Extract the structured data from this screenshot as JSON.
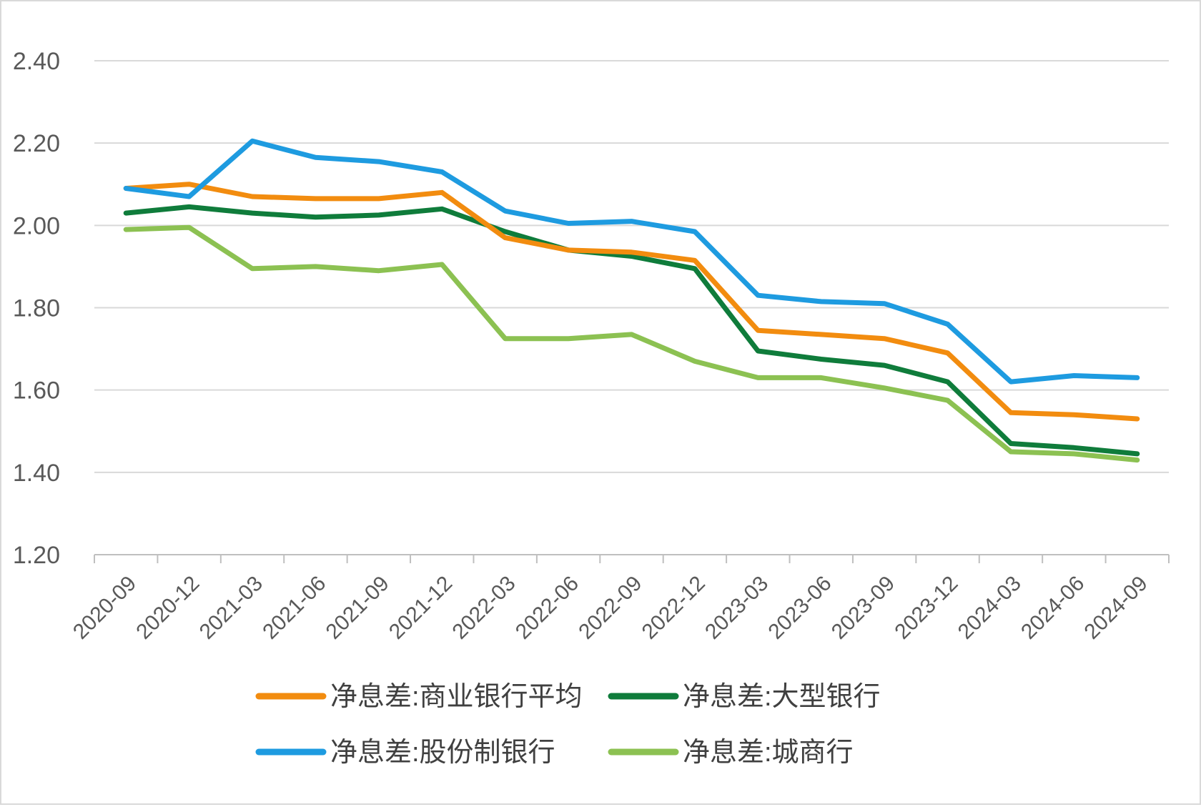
{
  "chart_data": {
    "type": "line",
    "title": "",
    "xlabel": "",
    "ylabel": "",
    "ylim": [
      1.2,
      2.4
    ],
    "yticks": [
      "1.20",
      "1.40",
      "1.60",
      "1.80",
      "2.00",
      "2.20",
      "2.40"
    ],
    "ytick_values": [
      1.2,
      1.4,
      1.6,
      1.8,
      2.0,
      2.2,
      2.4
    ],
    "grid": true,
    "legend_position": "bottom",
    "categories": [
      "2020-09",
      "2020-12",
      "2021-03",
      "2021-06",
      "2021-09",
      "2021-12",
      "2022-03",
      "2022-06",
      "2022-09",
      "2022-12",
      "2023-03",
      "2023-06",
      "2023-09",
      "2023-12",
      "2024-03",
      "2024-06",
      "2024-09"
    ],
    "series": [
      {
        "name": "净息差:商业银行平均",
        "color": "#f28c0f",
        "values": [
          2.09,
          2.1,
          2.07,
          2.065,
          2.065,
          2.08,
          1.97,
          1.94,
          1.935,
          1.915,
          1.745,
          1.735,
          1.725,
          1.69,
          1.545,
          1.54,
          1.53
        ]
      },
      {
        "name": "净息差:大型银行",
        "color": "#0f7c3b",
        "values": [
          2.03,
          2.045,
          2.03,
          2.02,
          2.025,
          2.04,
          1.985,
          1.94,
          1.925,
          1.895,
          1.695,
          1.675,
          1.66,
          1.62,
          1.47,
          1.46,
          1.445
        ]
      },
      {
        "name": "净息差:股份制银行",
        "color": "#1e9be0",
        "values": [
          2.09,
          2.07,
          2.205,
          2.165,
          2.155,
          2.13,
          2.035,
          2.005,
          2.01,
          1.985,
          1.83,
          1.815,
          1.81,
          1.76,
          1.62,
          1.635,
          1.63
        ]
      },
      {
        "name": "净息差:城商行",
        "color": "#8cc152",
        "values": [
          1.99,
          1.995,
          1.895,
          1.9,
          1.89,
          1.905,
          1.725,
          1.725,
          1.735,
          1.67,
          1.63,
          1.63,
          1.605,
          1.575,
          1.45,
          1.445,
          1.43
        ]
      }
    ]
  }
}
